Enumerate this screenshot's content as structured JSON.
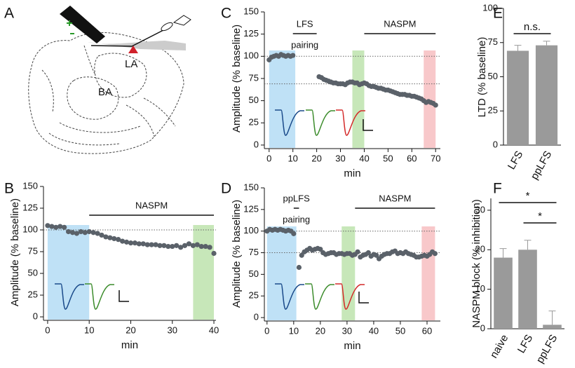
{
  "diagram": {
    "panel": "A",
    "labels": [
      "LA",
      "BA"
    ]
  },
  "chart_data": [
    {
      "panel": "B",
      "type": "scatter",
      "xlabel": "min",
      "ylabel": "Amplitude (% baseline)",
      "xlim": [
        -1,
        40.5
      ],
      "ylim": [
        -4,
        150
      ],
      "xticks": [
        0,
        10,
        20,
        30,
        40
      ],
      "yticks": [
        0,
        25,
        50,
        75,
        100,
        125,
        150
      ],
      "color": "#5a6169",
      "ref_lines": [
        100
      ],
      "shaded": [
        {
          "x0": 0,
          "x1": 10,
          "color": "#bfe1f6"
        },
        {
          "x0": 35,
          "x1": 40,
          "color": "#c7e7b9"
        }
      ],
      "annotations": [
        {
          "text": "NASPM",
          "x0": 10,
          "x1": 40
        }
      ],
      "x": [
        0,
        1,
        2,
        3,
        4,
        5,
        6,
        7,
        8,
        9,
        10,
        11,
        12,
        13,
        14,
        15,
        16,
        17,
        18,
        19,
        20,
        21,
        22,
        23,
        24,
        25,
        26,
        27,
        28,
        29,
        30,
        31,
        32,
        33,
        34,
        35,
        36,
        37,
        38,
        39,
        40
      ],
      "values": [
        105,
        104,
        103,
        104,
        103,
        98,
        97,
        96,
        98,
        97,
        98,
        97,
        96,
        94,
        92,
        91,
        90,
        89,
        87,
        86,
        85,
        85,
        84,
        84,
        83,
        83,
        83,
        82,
        82,
        81,
        81,
        82,
        80,
        82,
        84,
        82,
        83,
        81,
        81,
        80,
        73
      ]
    },
    {
      "panel": "C",
      "type": "scatter",
      "xlabel": "min",
      "ylabel": "Amplitude (% baseline)",
      "xlim": [
        -2,
        72
      ],
      "ylim": [
        -4,
        150
      ],
      "xticks": [
        0,
        10,
        20,
        30,
        40,
        50,
        60,
        70
      ],
      "yticks": [
        0,
        25,
        50,
        75,
        100,
        125,
        150
      ],
      "color": "#5a6169",
      "ref_lines": [
        100,
        69
      ],
      "shaded": [
        {
          "x0": 0,
          "x1": 11,
          "color": "#bfe1f6"
        },
        {
          "x0": 35,
          "x1": 40,
          "color": "#c7e7b9"
        },
        {
          "x0": 65,
          "x1": 70,
          "color": "#f8c8ca"
        }
      ],
      "annotations": [
        {
          "text": "LFS",
          "x0": 10,
          "x1": 20
        },
        {
          "text": "pairing"
        },
        {
          "text": "NASPM",
          "x0": 40,
          "x1": 70
        }
      ],
      "x": [
        0,
        1,
        2,
        3,
        4,
        5,
        6,
        7,
        8,
        9,
        10,
        21,
        22,
        23,
        24,
        25,
        26,
        27,
        28,
        29,
        30,
        31,
        32,
        33,
        34,
        35,
        36,
        37,
        38,
        39,
        40,
        41,
        42,
        43,
        44,
        45,
        46,
        47,
        48,
        49,
        50,
        51,
        52,
        53,
        54,
        55,
        56,
        57,
        58,
        59,
        60,
        61,
        62,
        63,
        64,
        65,
        66,
        67,
        68,
        69,
        70
      ],
      "values": [
        96,
        99,
        100,
        101,
        100,
        102,
        101,
        100,
        101,
        100,
        101,
        77,
        76,
        74,
        73,
        72,
        71,
        70,
        70,
        69,
        69,
        69,
        68,
        70,
        71,
        71,
        70,
        70,
        68,
        69,
        70,
        69,
        67,
        66,
        66,
        65,
        64,
        64,
        63,
        62,
        62,
        61,
        60,
        59,
        58,
        57,
        57,
        57,
        56,
        56,
        55,
        55,
        54,
        53,
        52,
        50,
        48,
        49,
        48,
        47,
        45
      ]
    },
    {
      "panel": "D",
      "type": "scatter",
      "xlabel": "min",
      "ylabel": "Amplitude (% baseline)",
      "xlim": [
        -1,
        65
      ],
      "ylim": [
        -4,
        150
      ],
      "xticks": [
        0,
        10,
        20,
        30,
        40,
        50,
        60
      ],
      "yticks": [
        0,
        25,
        50,
        75,
        100,
        125,
        150
      ],
      "color": "#5a6169",
      "ref_lines": [
        100,
        75
      ],
      "shaded": [
        {
          "x0": 0,
          "x1": 11,
          "color": "#bfe1f6"
        },
        {
          "x0": 28,
          "x1": 33,
          "color": "#c7e7b9"
        },
        {
          "x0": 58,
          "x1": 63,
          "color": "#f8c8ca"
        }
      ],
      "annotations": [
        {
          "text": "ppLFS",
          "x0": 10,
          "x1": 12
        },
        {
          "text": "pairing"
        },
        {
          "text": "NASPM",
          "x0": 33,
          "x1": 63
        }
      ],
      "x": [
        0,
        1,
        2,
        3,
        4,
        5,
        6,
        7,
        8,
        9,
        10,
        12,
        13,
        14,
        15,
        16,
        17,
        18,
        19,
        20,
        21,
        22,
        23,
        24,
        25,
        26,
        27,
        28,
        29,
        30,
        31,
        32,
        33,
        34,
        35,
        36,
        37,
        38,
        39,
        40,
        41,
        42,
        43,
        44,
        45,
        46,
        47,
        48,
        49,
        50,
        51,
        52,
        53,
        54,
        55,
        56,
        57,
        58,
        59,
        60,
        61,
        62,
        63
      ],
      "values": [
        100,
        102,
        101,
        102,
        101,
        102,
        101,
        100,
        101,
        100,
        97,
        58,
        72,
        76,
        78,
        80,
        78,
        79,
        80,
        79,
        75,
        73,
        74,
        75,
        75,
        73,
        74,
        74,
        73,
        74,
        74,
        72,
        73,
        76,
        70,
        72,
        73,
        75,
        71,
        73,
        72,
        68,
        71,
        73,
        74,
        74,
        76,
        77,
        74,
        75,
        74,
        76,
        74,
        73,
        72,
        70,
        70,
        71,
        72,
        71,
        73,
        76,
        74
      ]
    },
    {
      "panel": "E",
      "type": "bar",
      "ylabel": "LTD (% baseline)",
      "ylim": [
        0,
        100
      ],
      "yticks": [
        0,
        25,
        50,
        75,
        100
      ],
      "color": "#9a9a9a",
      "categories": [
        "LFS",
        "ppLFS"
      ],
      "values": [
        69,
        73
      ],
      "errors": [
        4,
        3
      ],
      "annotations": [
        {
          "text": "n.s."
        }
      ]
    },
    {
      "panel": "F",
      "type": "bar",
      "ylabel": "NASPM block (% inhibition)",
      "ylim": [
        0,
        33
      ],
      "yticks": [
        0,
        10,
        20,
        30
      ],
      "color": "#9a9a9a",
      "categories": [
        "naive",
        "LFS",
        "ppLFS"
      ],
      "values": [
        18,
        20,
        1
      ],
      "errors": [
        2.3,
        2.4,
        3.5
      ],
      "annotations": [
        {
          "text": "*"
        },
        {
          "text": "*"
        }
      ]
    }
  ]
}
